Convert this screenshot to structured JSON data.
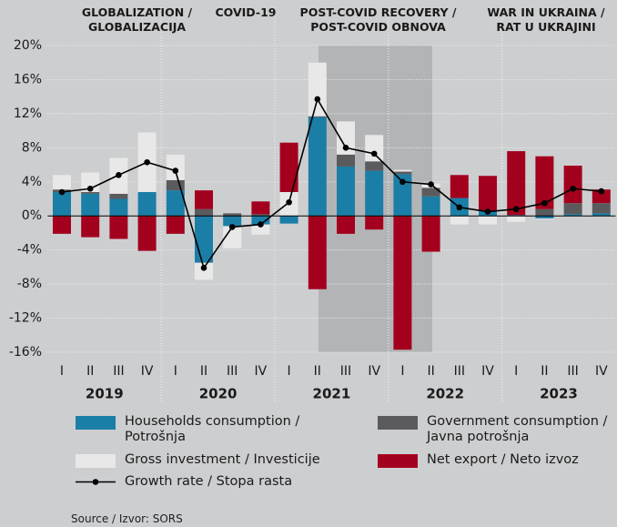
{
  "chart_data": {
    "type": "stacked_bar_line",
    "annotations": [
      "GLOBALIZATION / GLOBALIZACIJA",
      "COVID-19",
      "POST-COVID RECOVERY / POST-COVID OBNOVA",
      "WAR IN UKRAINA / RAT U UKRAJINI"
    ],
    "categories": [
      "I",
      "II",
      "III",
      "IV",
      "I",
      "II",
      "III",
      "IV",
      "I",
      "II",
      "III",
      "IV",
      "I",
      "II",
      "III",
      "IV",
      "I",
      "II",
      "III",
      "IV"
    ],
    "years": [
      "2019",
      "2020",
      "2021",
      "2022",
      "2023"
    ],
    "series": [
      {
        "name": "Households consumption / Potrošnja",
        "color": "#1b7ea6",
        "values": [
          2.8,
          2.6,
          2.0,
          2.8,
          3.0,
          -5.5,
          -1.2,
          -1.0,
          -0.9,
          11.6,
          5.8,
          5.3,
          4.9,
          2.3,
          2.1,
          0.6,
          0.1,
          -0.3,
          0.2,
          0.3
        ]
      },
      {
        "name": "Government consumption / Javna potrošnja",
        "color": "#5b5b5d",
        "values": [
          0.3,
          0.2,
          0.6,
          0,
          1.2,
          0.8,
          0.3,
          0.2,
          0,
          0.1,
          1.4,
          1.1,
          0.3,
          1.0,
          0,
          0,
          0,
          0.8,
          1.3,
          1.2
        ]
      },
      {
        "name": "Gross investment / Investicije",
        "color": "#e8e8e9",
        "values": [
          1.7,
          2.3,
          4.2,
          7.0,
          3.0,
          -2.0,
          -2.6,
          -1.2,
          2.8,
          6.3,
          3.9,
          3.1,
          0.2,
          0.5,
          -1.0,
          -1.0,
          -0.7,
          -0.1,
          0,
          0
        ]
      },
      {
        "name": "Net export / Neto izvoz",
        "color": "#a3001e",
        "values": [
          -2.1,
          -2.5,
          -2.7,
          -4.1,
          -2.1,
          2.2,
          0,
          1.5,
          5.8,
          -8.6,
          -2.1,
          -1.6,
          -15.7,
          -4.2,
          2.7,
          4.1,
          7.5,
          6.2,
          4.4,
          1.6
        ]
      },
      {
        "name": "Growth rate / Stopa rasta",
        "color": "#000000",
        "kind": "line",
        "values": [
          2.8,
          3.2,
          4.8,
          6.3,
          5.3,
          -6.1,
          -1.3,
          -1.0,
          1.6,
          13.7,
          8.0,
          7.3,
          4.0,
          3.7,
          1.0,
          0.5,
          0.8,
          1.5,
          3.2,
          2.9
        ]
      }
    ],
    "ylim": [
      -16,
      20
    ],
    "yticks": [
      {
        "value": -16,
        "label": "-16%"
      },
      {
        "value": -12,
        "label": "-12%"
      },
      {
        "value": -8,
        "label": "-8%"
      },
      {
        "value": -4,
        "label": "-4%"
      },
      {
        "value": 0,
        "label": "0%"
      },
      {
        "value": 4,
        "label": "4%"
      },
      {
        "value": 8,
        "label": "8%"
      },
      {
        "value": 12,
        "label": "12%"
      },
      {
        "value": 16,
        "label": "16%"
      },
      {
        "value": 20,
        "label": "20%"
      }
    ],
    "grid": true,
    "source": "Source / Izvor: SORS"
  }
}
